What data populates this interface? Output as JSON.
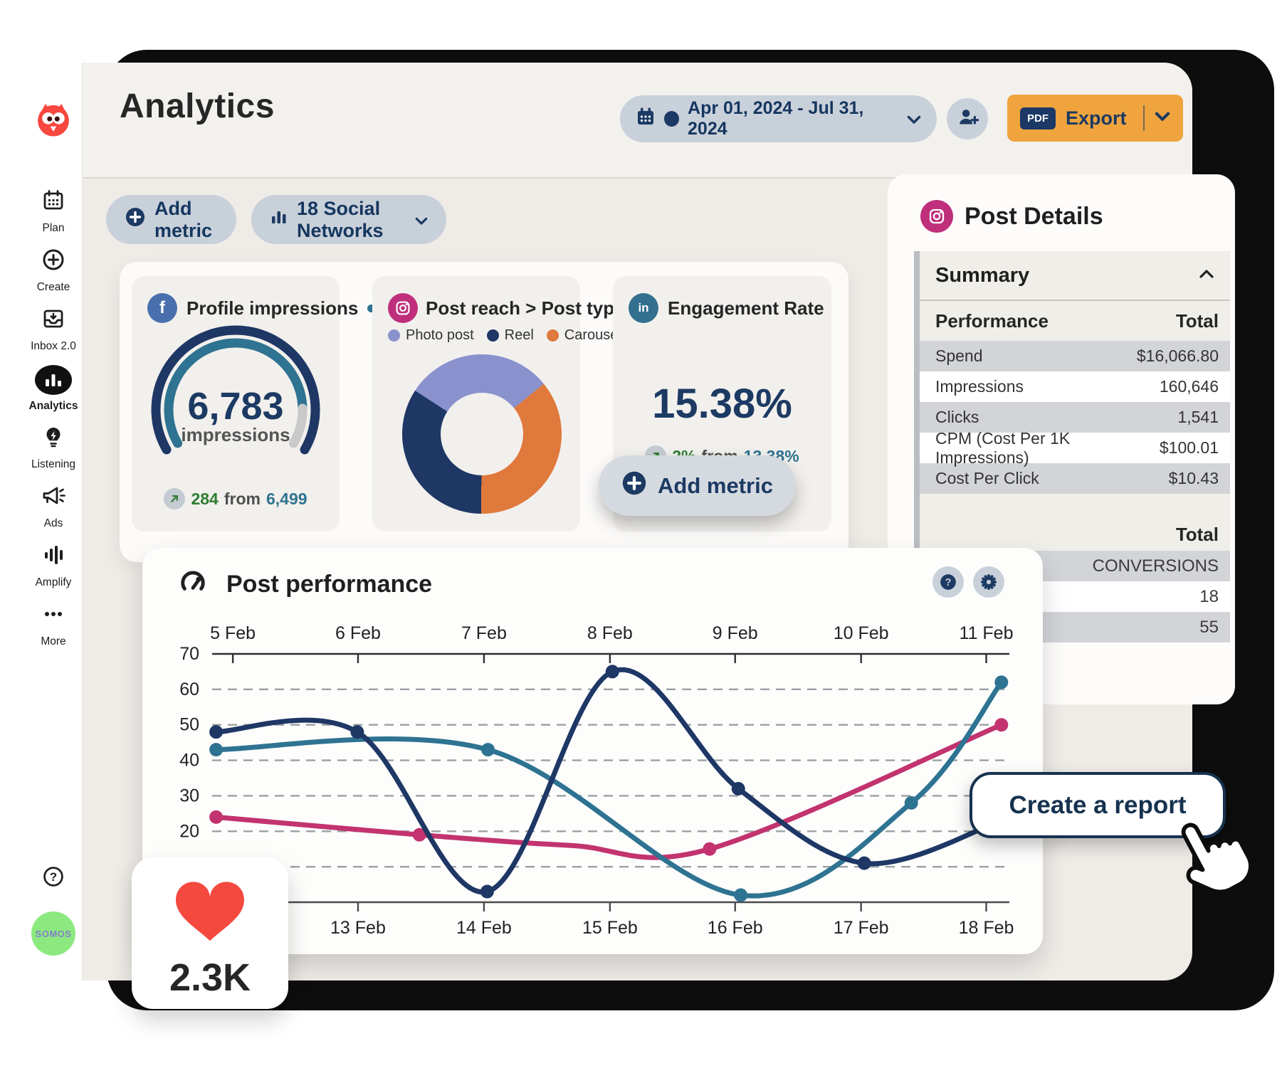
{
  "header": {
    "title": "Analytics",
    "date_range": "Apr 01, 2024 - Jul 31, 2024",
    "export": {
      "badge": "PDF",
      "label": "Export"
    }
  },
  "toolbar": {
    "add_metric_label": "Add metric",
    "networks_label": "18 Social Networks"
  },
  "sidebar": {
    "items": [
      {
        "label": "Plan",
        "icon": "calendar-icon",
        "active": false
      },
      {
        "label": "Create",
        "icon": "plus-circle-icon",
        "active": false
      },
      {
        "label": "Inbox 2.0",
        "icon": "inbox-icon",
        "active": false
      },
      {
        "label": "Analytics",
        "icon": "bar-chart-icon",
        "active": true
      },
      {
        "label": "Listening",
        "icon": "lightbulb-icon",
        "active": false
      },
      {
        "label": "Ads",
        "icon": "megaphone-icon",
        "active": false
      },
      {
        "label": "Amplify",
        "icon": "sound-bars-icon",
        "active": false
      },
      {
        "label": "More",
        "icon": "ellipsis-icon",
        "active": false
      }
    ],
    "avatar_label": "SOMOS"
  },
  "metrics": {
    "profile_impressions": {
      "network": "facebook",
      "title": "Profile impressions",
      "value": "6,783",
      "unit": "impressions",
      "change_value": "284",
      "from_label": "from",
      "previous_value": "6,499",
      "gauge_fill_percent": 87,
      "gauge_colors": {
        "outer": "#1e3765",
        "fill": "#2e7391",
        "rest": "#c9c9c9"
      }
    },
    "post_reach": {
      "network": "instagram",
      "title": "Post reach > Post type",
      "donut_start_deg": -57,
      "donut_order": [
        0,
        2,
        1
      ],
      "legend": [
        {
          "label": "Photo post",
          "value": 30,
          "color": "#8a92cd"
        },
        {
          "label": "Reel",
          "value": 34,
          "color": "#1e3765"
        },
        {
          "label": "Carousel",
          "value": 36,
          "color": "#e0793c"
        }
      ]
    },
    "engagement_rate": {
      "network": "linkedin",
      "title": "Engagement Rate",
      "value": "15.38%",
      "change_value": "2%",
      "from_label": "from",
      "previous_value": "13.38%"
    },
    "add_metric_label": "Add metric"
  },
  "post_details": {
    "network": "instagram",
    "title": "Post Details",
    "summary_label": "Summary",
    "performance": {
      "col_label": "Performance",
      "total_label": "Total",
      "rows": [
        {
          "label": "Spend",
          "value": "$16,066.80"
        },
        {
          "label": "Impressions",
          "value": "160,646"
        },
        {
          "label": "Clicks",
          "value": "1,541"
        },
        {
          "label": "CPM (Cost Per 1K Impressions)",
          "value": "$100.01"
        },
        {
          "label": "Cost Per Click",
          "value": "$10.43"
        }
      ]
    },
    "conversions": {
      "total_label": "Total",
      "rows": [
        "CONVERSIONS",
        "18",
        "55"
      ]
    }
  },
  "chart_data": {
    "type": "line",
    "title": "Post performance",
    "ylim": [
      0,
      70
    ],
    "y_ticks": [
      70,
      60,
      50,
      40,
      30,
      20
    ],
    "gridlines": [
      10,
      20,
      30,
      40,
      50,
      60
    ],
    "grid_style": "dashed",
    "legend_position": "none",
    "top_axis": {
      "labels": [
        "5 Feb",
        "6 Feb",
        "7 Feb",
        "8 Feb",
        "9 Feb",
        "10 Feb",
        "11 Feb"
      ],
      "fracs": [
        0.026,
        0.183,
        0.341,
        0.499,
        0.656,
        0.814,
        0.971
      ]
    },
    "bottom_axis": {
      "labels": [
        "13 Feb",
        "14 Feb",
        "15 Feb",
        "16 Feb",
        "17 Feb",
        "18 Feb"
      ],
      "fracs": [
        0.183,
        0.341,
        0.499,
        0.656,
        0.814,
        0.971
      ]
    },
    "series": [
      {
        "name": "pink-line",
        "color": "#c2336f",
        "points": [
          {
            "x": 0.005,
            "y": 24,
            "dot": true
          },
          {
            "x": 0.26,
            "y": 19,
            "dot": true
          },
          {
            "x": 0.45,
            "y": 16,
            "dot": false
          },
          {
            "x": 0.624,
            "y": 15,
            "dot": true
          },
          {
            "x": 0.99,
            "y": 50,
            "dot": true
          }
        ]
      },
      {
        "name": "teal-line",
        "color": "#2e7391",
        "points": [
          {
            "x": 0.005,
            "y": 43,
            "dot": true
          },
          {
            "x": 0.346,
            "y": 43,
            "dot": true
          },
          {
            "x": 0.663,
            "y": 2,
            "dot": true
          },
          {
            "x": 0.877,
            "y": 28,
            "dot": true
          },
          {
            "x": 0.99,
            "y": 62,
            "dot": true
          }
        ]
      },
      {
        "name": "navy-line",
        "color": "#1e3765",
        "points": [
          {
            "x": 0.005,
            "y": 48,
            "dot": true
          },
          {
            "x": 0.182,
            "y": 48,
            "dot": true
          },
          {
            "x": 0.345,
            "y": 3,
            "dot": true
          },
          {
            "x": 0.502,
            "y": 65,
            "dot": true
          },
          {
            "x": 0.66,
            "y": 32,
            "dot": true
          },
          {
            "x": 0.818,
            "y": 11,
            "dot": true
          },
          {
            "x": 0.99,
            "y": 23,
            "dot": false
          }
        ]
      }
    ]
  },
  "floating": {
    "likes_value": "2.3K",
    "create_report_label": "Create a report"
  },
  "colors": {
    "accent_orange": "#efa43e",
    "navy": "#1c3a63",
    "teal": "#2e7391",
    "pink": "#c2336f",
    "green": "#2e7d33",
    "owl_red": "#f8473f",
    "avatar_green": "#8ce97f"
  }
}
